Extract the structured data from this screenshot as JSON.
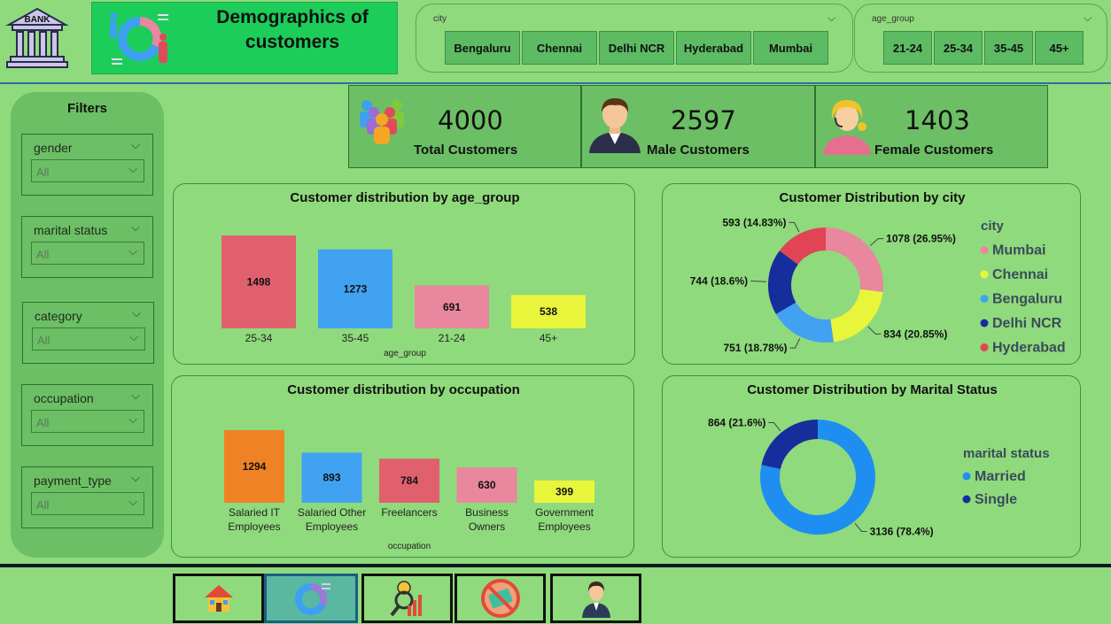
{
  "header": {
    "logo_text": "BANK",
    "title": "Demographics of customers"
  },
  "city_slicer": {
    "label": "city",
    "options": [
      "Bengaluru",
      "Chennai",
      "Delhi NCR",
      "Hyderabad",
      "Mumbai"
    ]
  },
  "age_slicer": {
    "label": "age_group",
    "options": [
      "21-24",
      "25-34",
      "35-45",
      "45+"
    ]
  },
  "filters": {
    "title": "Filters",
    "items": [
      {
        "label": "gender",
        "value": "All"
      },
      {
        "label": "marital status",
        "value": "All"
      },
      {
        "label": "category",
        "value": "All"
      },
      {
        "label": "occupation",
        "value": "All"
      },
      {
        "label": "payment_type",
        "value": "All"
      }
    ]
  },
  "kpis": [
    {
      "value": "4000",
      "label": "Total Customers",
      "icon": "group-icon"
    },
    {
      "value": "2597",
      "label": "Male Customers",
      "icon": "male-avatar-icon"
    },
    {
      "value": "1403",
      "label": "Female Customers",
      "icon": "female-avatar-icon"
    }
  ],
  "colors": {
    "background": "#8fda7c",
    "title_box": "#1ccd5a",
    "pink": "#e8879e",
    "red": "#e0606e",
    "blue": "#41a2f2",
    "orange": "#f08226",
    "yellow": "#e9f53b",
    "navy": "#162d9c",
    "marital_blue": "#1e8ff0"
  },
  "chart_data": [
    {
      "type": "bar",
      "title": "Customer distribution by age_group",
      "xlabel": "age_group",
      "categories": [
        "25-34",
        "35-45",
        "21-24",
        "45+"
      ],
      "values": [
        1498,
        1273,
        691,
        538
      ],
      "colors": [
        "#e0606e",
        "#41a2f2",
        "#e8879e",
        "#e9f53b"
      ]
    },
    {
      "type": "bar",
      "title": "Customer distribution by occupation",
      "xlabel": "occupation",
      "categories": [
        "Salaried IT Employees",
        "Salaried Other Employees",
        "Freelancers",
        "Business Owners",
        "Government Employees"
      ],
      "category_lines": [
        [
          "Salaried IT",
          "Employees"
        ],
        [
          "Salaried Other",
          "Employees"
        ],
        [
          "Freelancers"
        ],
        [
          "Business",
          "Owners"
        ],
        [
          "Government",
          "Employees"
        ]
      ],
      "values": [
        1294,
        893,
        784,
        630,
        399
      ],
      "colors": [
        "#f08226",
        "#41a2f2",
        "#e0606e",
        "#e8879e",
        "#e9f53b"
      ]
    },
    {
      "type": "pie",
      "donut": true,
      "title": "Customer Distribution by city",
      "legend_title": "city",
      "legend": "right",
      "slices": [
        {
          "name": "Mumbai",
          "value": 1078,
          "label": "1078 (26.95%)",
          "color": "#e8879e"
        },
        {
          "name": "Chennai",
          "value": 834,
          "label": "834 (20.85%)",
          "color": "#e9f53b"
        },
        {
          "name": "Bengaluru",
          "value": 751,
          "label": "751 (18.78%)",
          "color": "#41a2f2"
        },
        {
          "name": "Delhi NCR",
          "value": 744,
          "label": "744 (18.6%)",
          "color": "#162d9c"
        },
        {
          "name": "Hyderabad",
          "value": 593,
          "label": "593 (14.83%)",
          "color": "#e04455"
        }
      ]
    },
    {
      "type": "pie",
      "donut": true,
      "title": "Customer Distribution by Marital Status",
      "legend_title": "marital status",
      "legend": "right",
      "slices": [
        {
          "name": "Married",
          "value": 3136,
          "label": "3136 (78.4%)",
          "color": "#1e8ff0"
        },
        {
          "name": "Single",
          "value": 864,
          "label": "864 (21.6%)",
          "color": "#162d9c"
        }
      ]
    }
  ],
  "nav": {
    "buttons": [
      {
        "name": "home-icon"
      },
      {
        "name": "demographics-icon"
      },
      {
        "name": "insights-icon"
      },
      {
        "name": "no-credit-card-icon"
      },
      {
        "name": "profile-icon"
      }
    ]
  }
}
